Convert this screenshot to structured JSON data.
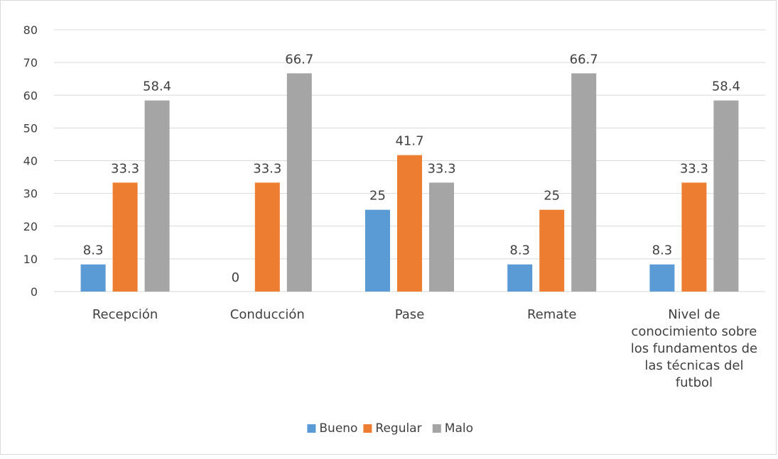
{
  "chart_data": {
    "type": "bar",
    "categories": [
      [
        "Recepción"
      ],
      [
        "Conducción"
      ],
      [
        "Pase"
      ],
      [
        "Remate"
      ],
      [
        "Nivel de",
        "conocimiento sobre",
        "los fundamentos de",
        "las técnicas del",
        "futbol"
      ]
    ],
    "series": [
      {
        "name": "Bueno",
        "color": "#5B9BD5",
        "values": [
          8.3,
          0,
          25,
          8.3,
          8.3
        ]
      },
      {
        "name": "Regular",
        "color": "#ED7D31",
        "values": [
          33.3,
          33.3,
          41.7,
          25,
          33.3
        ]
      },
      {
        "name": "Malo",
        "color": "#A5A5A5",
        "values": [
          58.4,
          66.7,
          33.3,
          66.7,
          58.4
        ]
      }
    ],
    "ylim": [
      0,
      80
    ],
    "yticks": [
      0,
      10,
      20,
      30,
      40,
      50,
      60,
      70,
      80
    ],
    "grid": true,
    "legend_position": "bottom",
    "data_labels": true
  }
}
